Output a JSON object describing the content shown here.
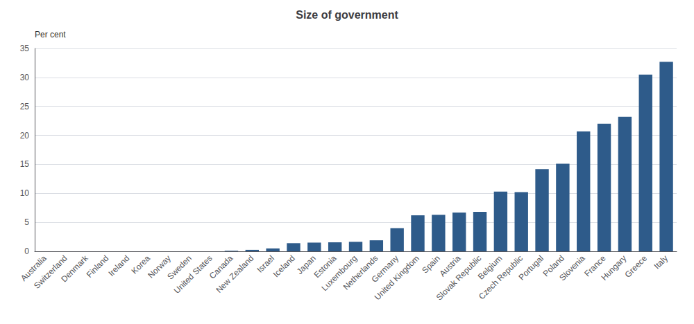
{
  "chart_data": {
    "type": "bar",
    "title": "Size of government",
    "ylabel": "Per cent",
    "categories": [
      "Australia",
      "Switzerland",
      "Denmark",
      "Finland",
      "Ireland",
      "Korea",
      "Norway",
      "Sweden",
      "United States",
      "Canada",
      "New Zealand",
      "Israel",
      "Iceland",
      "Japan",
      "Estonia",
      "Luxembourg",
      "Netherlands",
      "Germany",
      "United Kingdom",
      "Spain",
      "Austria",
      "Slovak Republic",
      "Belgium",
      "Czech Republic",
      "Portugal",
      "Poland",
      "Slovenia",
      "France",
      "Hungary",
      "Greece",
      "Italy"
    ],
    "values": [
      0.0,
      0.0,
      0.0,
      0.0,
      0.0,
      0.0,
      0.0,
      0.0,
      0.0,
      0.1,
      0.25,
      0.5,
      1.4,
      1.5,
      1.55,
      1.65,
      1.9,
      4.0,
      6.2,
      6.3,
      6.7,
      6.8,
      10.3,
      10.2,
      14.2,
      15.1,
      20.7,
      22.0,
      23.2,
      30.5,
      32.7
    ],
    "color": "#2e5b8a",
    "ylim": [
      0,
      35
    ],
    "yticks": [
      0,
      5,
      10,
      15,
      20,
      25,
      30,
      35
    ],
    "grid": true
  }
}
